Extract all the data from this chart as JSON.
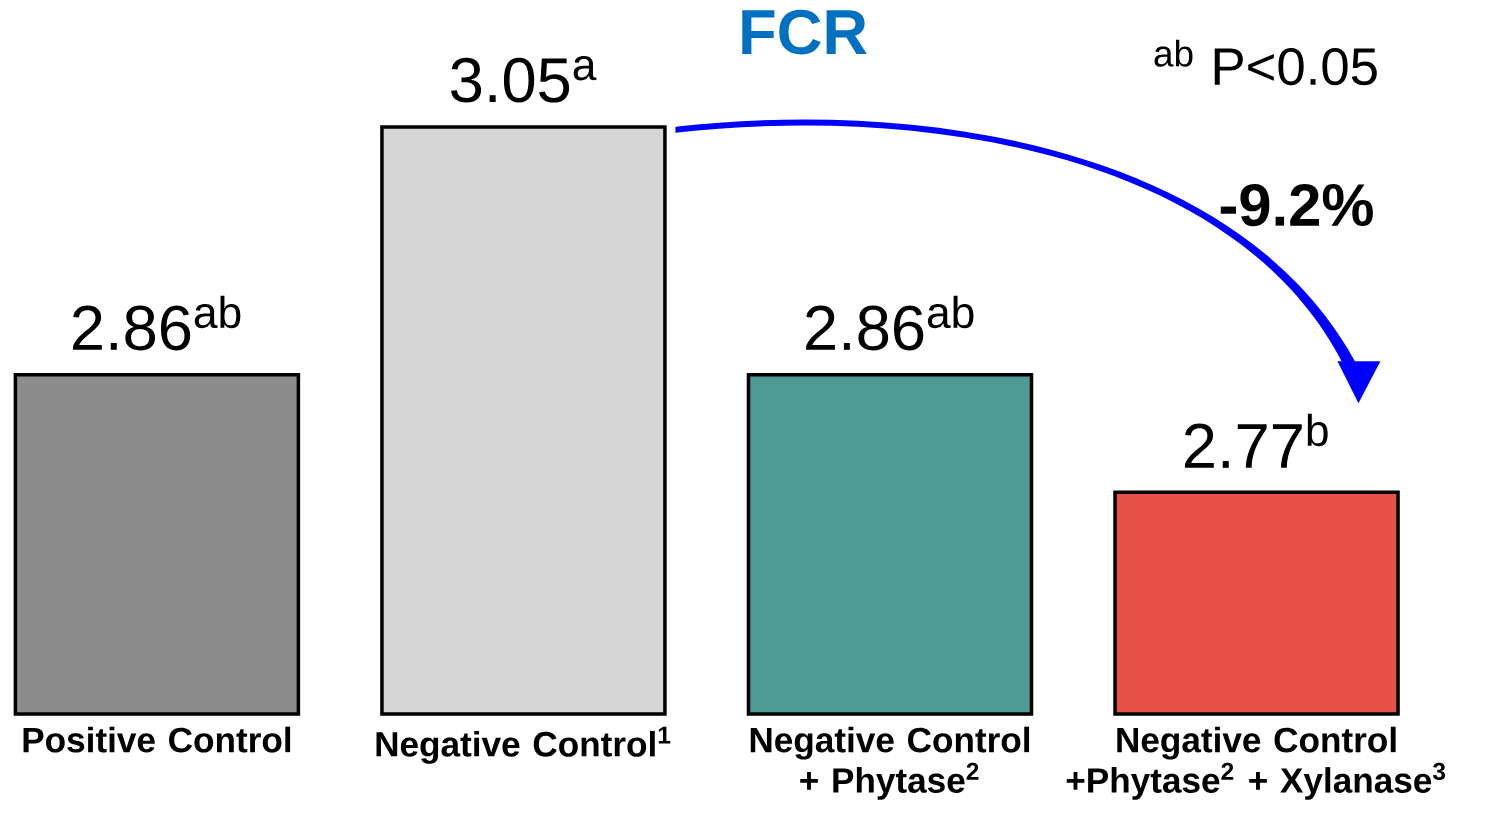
{
  "chart_data": {
    "type": "bar",
    "title": "FCR",
    "categories": [
      "Positive Control",
      "Negative Control$^{1}$",
      "Negative Control + Phytase$^{2}$",
      "Negative Control +Phytase$^{2}$ + Xylanase$^{3}$"
    ],
    "values": [
      2.86,
      3.05,
      2.86,
      2.77
    ],
    "value_labels": [
      "2.86$^{ab}$",
      "3.05$^{a}$",
      "2.86$^{ab}$",
      "2.77$^{b}$"
    ],
    "colors": [
      "#8c8c8c",
      "#d6d6d6",
      "#4f9a94",
      "#e8504a"
    ],
    "ylim": [
      2.6,
      3.05
    ],
    "tick_labels": "x",
    "annotations": [
      "$^{ab}$ P<0.05",
      "-9.2%"
    ]
  }
}
